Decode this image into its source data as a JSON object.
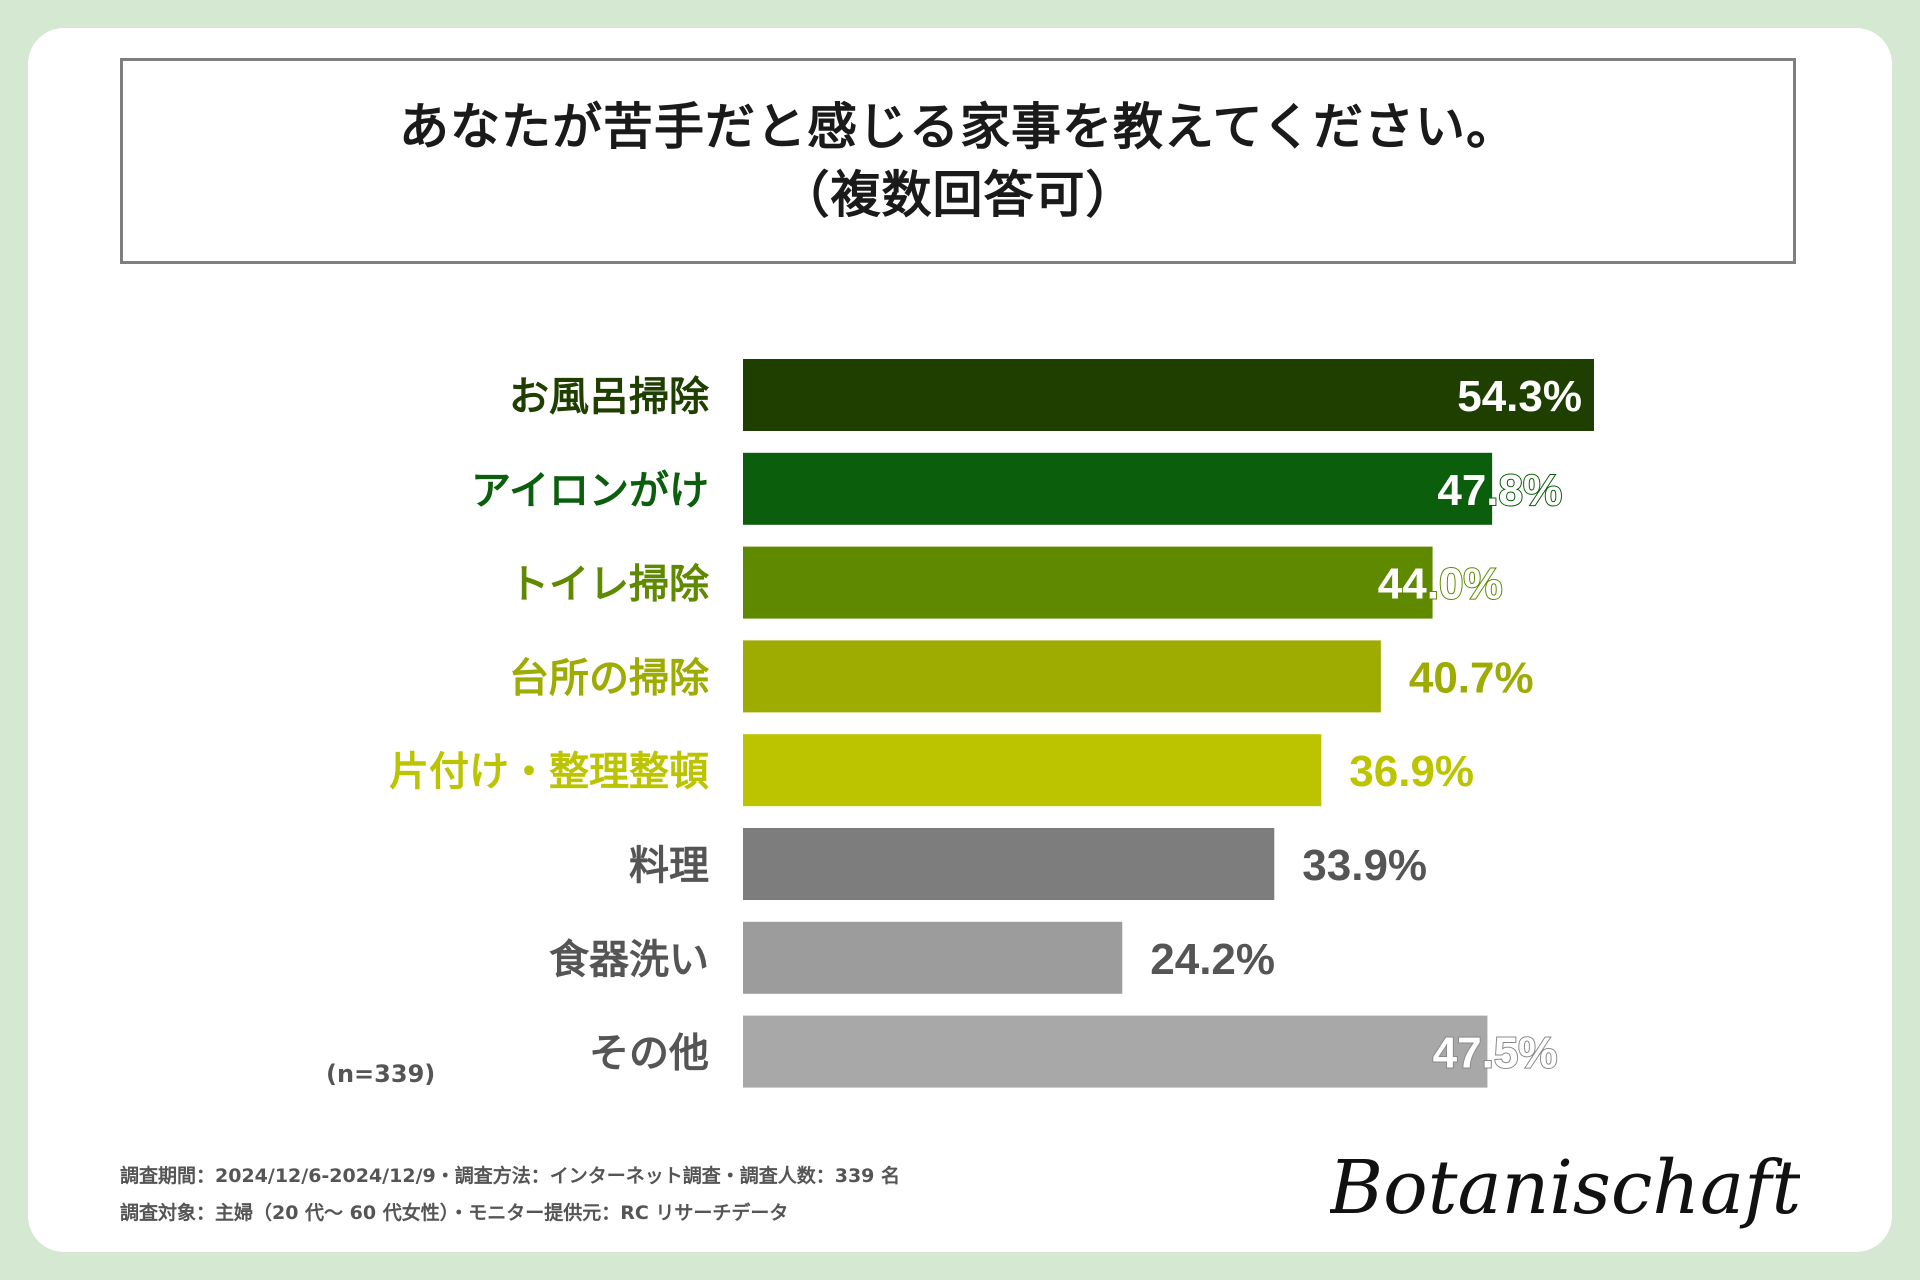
{
  "title": {
    "line1": "あなたが苦手だと感じる家事を教えてください。",
    "line2": "（複数回答可）"
  },
  "chart_data": {
    "type": "bar",
    "orientation": "horizontal",
    "title": "あなたが苦手だと感じる家事を教えてください。（複数回答可）",
    "categories": [
      "お風呂掃除",
      "アイロンがけ",
      "トイレ掃除",
      "台所の掃除",
      "片付け・整理整頓",
      "料理",
      "食器洗い",
      "その他"
    ],
    "values": [
      54.3,
      47.8,
      44.0,
      40.7,
      36.9,
      33.9,
      24.2,
      47.5
    ],
    "value_labels": [
      "54.3%",
      "47.8%",
      "44.0%",
      "40.7%",
      "36.9%",
      "33.9%",
      "24.2%",
      "47.5%"
    ],
    "colors": [
      "#1f3f00",
      "#0b5e0b",
      "#5f8a00",
      "#9eab00",
      "#bcc400",
      "#7d7d7d",
      "#9c9c9c",
      "#a8a8a8"
    ],
    "label_colors": [
      "#1f3f00",
      "#0b5e0b",
      "#5f8a00",
      "#9eab00",
      "#bcc400",
      "#555555",
      "#555555",
      "#555555"
    ],
    "value_label_inside": [
      true,
      true,
      true,
      false,
      false,
      false,
      false,
      true
    ],
    "xlim": [
      0,
      54.3
    ],
    "sample": "(n=339)"
  },
  "footer": {
    "line1": "調査期間：2024/12/6-2024/12/9・調査方法：インターネット調査・調査人数：339 名",
    "line2": "調査対象：主婦（20 代～ 60 代女性）・モニター提供元：RC リサーチデータ"
  },
  "logo": {
    "text": "Botanischaft"
  }
}
